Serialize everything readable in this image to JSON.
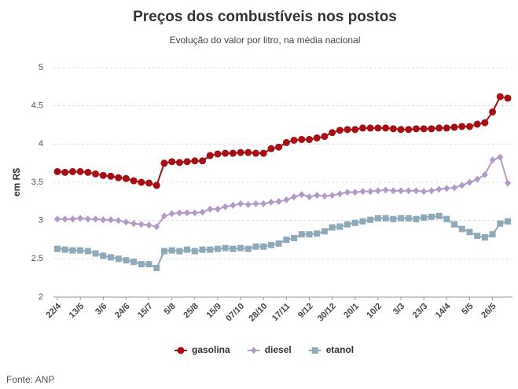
{
  "chart_data": {
    "type": "line",
    "title": "Preços dos combustíveis nos postos",
    "subtitle": "Evolução do valor por litro, na média nacional",
    "y_label": "em R$",
    "source": "Fonte: ANP",
    "categories": [
      "22/4",
      null,
      null,
      "13/5",
      null,
      null,
      "3/6",
      null,
      null,
      "24/6",
      null,
      null,
      "15/7",
      null,
      null,
      "5/8",
      null,
      null,
      "25/8",
      null,
      null,
      "15/9",
      null,
      null,
      "07/10",
      null,
      null,
      "28/10",
      null,
      null,
      "17/11",
      null,
      null,
      "9/12",
      null,
      null,
      "30/12",
      null,
      null,
      "20/1",
      null,
      null,
      "10/2",
      null,
      null,
      "3/3",
      null,
      null,
      "23/3",
      null,
      null,
      "14/4",
      null,
      null,
      "5/5",
      null,
      null,
      "26/5",
      null,
      null
    ],
    "series": [
      {
        "name": "gasolina",
        "color": "#a50f15",
        "marker": "circle",
        "values": [
          3.64,
          3.63,
          3.64,
          3.64,
          3.63,
          3.61,
          3.59,
          3.58,
          3.56,
          3.55,
          3.52,
          3.5,
          3.49,
          3.46,
          3.75,
          3.77,
          3.76,
          3.77,
          3.78,
          3.78,
          3.85,
          3.87,
          3.88,
          3.88,
          3.89,
          3.89,
          3.88,
          3.88,
          3.94,
          3.96,
          4.02,
          4.05,
          4.06,
          4.06,
          4.08,
          4.1,
          4.15,
          4.18,
          4.19,
          4.19,
          4.21,
          4.21,
          4.21,
          4.21,
          4.2,
          4.19,
          4.19,
          4.2,
          4.2,
          4.2,
          4.21,
          4.21,
          4.22,
          4.23,
          4.23,
          4.26,
          4.28,
          4.42,
          4.62,
          4.6
        ]
      },
      {
        "name": "diesel",
        "color": "#b39bc8",
        "marker": "diamond",
        "values": [
          3.02,
          3.02,
          3.02,
          3.03,
          3.02,
          3.02,
          3.01,
          3.01,
          3.0,
          2.98,
          2.96,
          2.95,
          2.94,
          2.92,
          3.06,
          3.09,
          3.1,
          3.1,
          3.1,
          3.11,
          3.15,
          3.15,
          3.18,
          3.2,
          3.22,
          3.21,
          3.22,
          3.22,
          3.24,
          3.25,
          3.27,
          3.31,
          3.34,
          3.31,
          3.33,
          3.32,
          3.33,
          3.35,
          3.37,
          3.37,
          3.38,
          3.38,
          3.39,
          3.4,
          3.39,
          3.39,
          3.39,
          3.39,
          3.38,
          3.39,
          3.41,
          3.42,
          3.43,
          3.46,
          3.5,
          3.54,
          3.6,
          3.79,
          3.83,
          3.49
        ]
      },
      {
        "name": "etanol",
        "color": "#8eaab9",
        "marker": "square",
        "values": [
          2.63,
          2.62,
          2.61,
          2.61,
          2.6,
          2.57,
          2.54,
          2.52,
          2.5,
          2.48,
          2.46,
          2.43,
          2.43,
          2.38,
          2.6,
          2.61,
          2.6,
          2.62,
          2.6,
          2.62,
          2.62,
          2.63,
          2.64,
          2.63,
          2.64,
          2.63,
          2.66,
          2.66,
          2.68,
          2.7,
          2.75,
          2.77,
          2.82,
          2.82,
          2.83,
          2.86,
          2.91,
          2.92,
          2.95,
          2.97,
          2.99,
          3.01,
          3.03,
          3.03,
          3.02,
          3.03,
          3.03,
          3.02,
          3.04,
          3.05,
          3.06,
          3.02,
          2.95,
          2.89,
          2.85,
          2.8,
          2.78,
          2.82,
          2.96,
          2.99
        ]
      }
    ],
    "ylim": [
      2,
      5
    ],
    "yticks": [
      2,
      2.5,
      3,
      3.5,
      4,
      4.5,
      5
    ],
    "grid": true,
    "legend": "bottom"
  }
}
